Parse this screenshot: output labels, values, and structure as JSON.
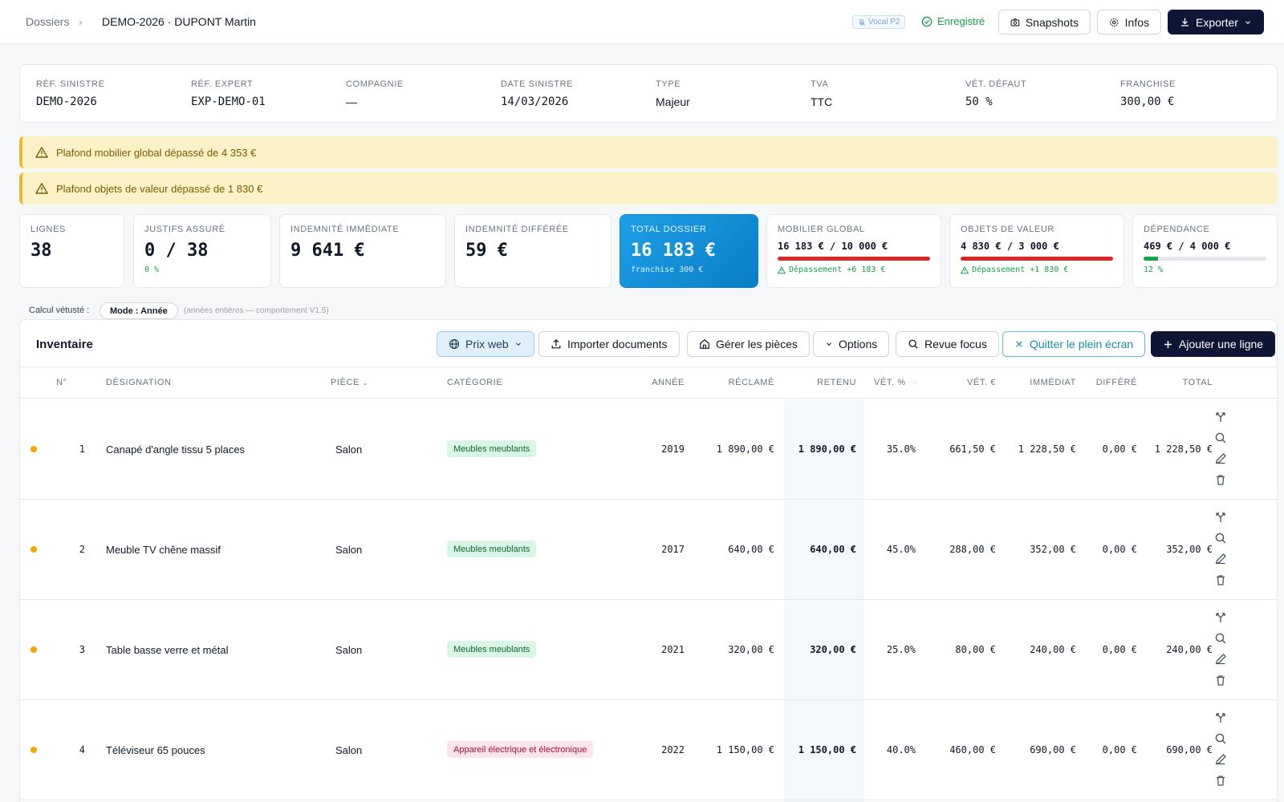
{
  "header": {
    "crumb_root": "Dossiers",
    "crumb_current": "DEMO-2026 · DUPONT Martin",
    "vocal_badge": "Vocal P2",
    "saved_label": "Enregistré",
    "snapshots_label": "Snapshots",
    "infos_label": "Infos",
    "export_label": "Exporter"
  },
  "refs": [
    {
      "label": "RÉF. SINISTRE",
      "value": "DEMO-2026"
    },
    {
      "label": "RÉF. EXPERT",
      "value": "EXP-DEMO-01"
    },
    {
      "label": "COMPAGNIE",
      "value": "—"
    },
    {
      "label": "DATE SINISTRE",
      "value": "14/03/2026"
    },
    {
      "label": "TYPE",
      "value": "Majeur"
    },
    {
      "label": "TVA",
      "value": "TTC"
    },
    {
      "label": "VÉT. DÉFAUT",
      "value": "50 %"
    },
    {
      "label": "FRANCHISE",
      "value": "300,00 €"
    }
  ],
  "alerts": [
    "Plafond mobilier global dépassé de 4 353 €",
    "Plafond objets de valeur dépassé de 1 830 €"
  ],
  "stats": {
    "lignes": {
      "label": "LIGNES",
      "value": "38"
    },
    "justifs": {
      "label": "JUSTIFS ASSURÉ",
      "value": "0 / 38",
      "sub": "0 %"
    },
    "immediate": {
      "label": "INDEMNITÉ IMMÉDIATE",
      "value": "9 641 €"
    },
    "differee": {
      "label": "INDEMNITÉ DIFFÉRÉE",
      "value": "59 €"
    },
    "total": {
      "label": "TOTAL DOSSIER",
      "value": "16 183 €",
      "sub": "franchise 300 €"
    },
    "mobilier": {
      "label": "MOBILIER GLOBAL",
      "ratio": "16 183 € / 10 000 €",
      "fill_pct": 100,
      "color": "#dc2626",
      "warn": "Dépassement +6 183 €"
    },
    "valeur": {
      "label": "OBJETS DE VALEUR",
      "ratio": "4 830 € / 3 000 €",
      "fill_pct": 100,
      "color": "#dc2626",
      "warn": "Dépassement +1 830 €"
    },
    "dependance": {
      "label": "DÉPENDANCE",
      "ratio": "469 € / 4 000 €",
      "fill_pct": 12,
      "color": "#16a34a",
      "sub": "12 %"
    }
  },
  "vetuste": {
    "label": "Calcul vétusté :",
    "mode": "Mode : Année",
    "note": "(années entières — comportement V1.5)"
  },
  "inventory": {
    "title": "Inventaire",
    "toolbar": {
      "prix_web": "Prix web",
      "importer": "Importer documents",
      "pieces": "Gérer les pièces",
      "options": "Options",
      "revue": "Revue focus",
      "quitter": "Quitter le plein écran",
      "ajouter": "Ajouter une ligne"
    },
    "columns": {
      "num": "N°",
      "designation": "DÉSIGNATION",
      "piece": "PIÈCE",
      "categorie": "CATÉGORIE",
      "annee": "ANNÉE",
      "reclame": "RÉCLAMÉ",
      "retenu": "RETENU",
      "vet_pct": "VÉT. %",
      "vet_eur": "VÉT. €",
      "immediat": "IMMÉDIAT",
      "differe": "DIFFÉRÉ",
      "total": "TOTAL"
    },
    "rows": [
      {
        "num": "1",
        "designation": "Canapé d'angle tissu 5 places",
        "piece": "Salon",
        "categorie": "Meubles meublants",
        "cat_color": "green",
        "annee": "2019",
        "reclame": "1 890,00 €",
        "retenu": "1 890,00 €",
        "vet_pct": "35.0%",
        "vet_eur": "661,50 €",
        "immediat": "1 228,50 €",
        "differe": "0,00 €",
        "total": "1 228,50 €"
      },
      {
        "num": "2",
        "designation": "Meuble TV chêne massif",
        "piece": "Salon",
        "categorie": "Meubles meublants",
        "cat_color": "green",
        "annee": "2017",
        "reclame": "640,00 €",
        "retenu": "640,00 €",
        "vet_pct": "45.0%",
        "vet_eur": "288,00 €",
        "immediat": "352,00 €",
        "differe": "0,00 €",
        "total": "352,00 €"
      },
      {
        "num": "3",
        "designation": "Table basse verre et métal",
        "piece": "Salon",
        "categorie": "Meubles meublants",
        "cat_color": "green",
        "annee": "2021",
        "reclame": "320,00 €",
        "retenu": "320,00 €",
        "vet_pct": "25.0%",
        "vet_eur": "80,00 €",
        "immediat": "240,00 €",
        "differe": "0,00 €",
        "total": "240,00 €"
      },
      {
        "num": "4",
        "designation": "Téléviseur 65 pouces",
        "piece": "Salon",
        "categorie": "Appareil électrique et électronique",
        "cat_color": "pink",
        "annee": "2022",
        "reclame": "1 150,00 €",
        "retenu": "1 150,00 €",
        "vet_pct": "40.0%",
        "vet_eur": "460,00 €",
        "immediat": "690,00 €",
        "differe": "0,00 €",
        "total": "690,00 €"
      }
    ]
  }
}
